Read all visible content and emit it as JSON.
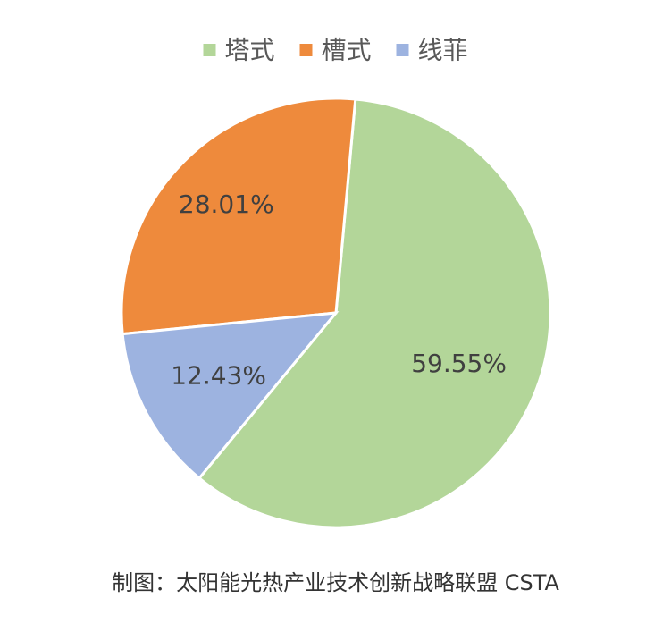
{
  "chart_data": {
    "type": "pie",
    "categories": [
      "塔式",
      "槽式",
      "线菲"
    ],
    "values": [
      59.55,
      28.01,
      12.43
    ],
    "data_labels": [
      "59.55%",
      "28.01%",
      "12.43%"
    ],
    "colors": [
      "#b3d699",
      "#ee8a3c",
      "#9db3e0"
    ],
    "legend_position": "top"
  },
  "caption": "制图：太阳能光热产业技术创新战略联盟 CSTA"
}
